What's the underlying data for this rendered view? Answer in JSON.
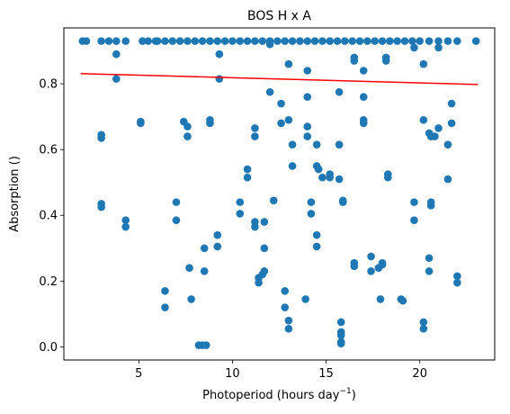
{
  "chart_data": {
    "type": "scatter",
    "title": "BOS H x A",
    "xlabel": "Photoperiod (hours day",
    "xlabel_sup": "−1",
    "xlabel_end": ")",
    "ylabel": "Absorption ()",
    "xlim": [
      1.0,
      24.0
    ],
    "ylim": [
      -0.04,
      0.97
    ],
    "xticks": [
      5,
      10,
      15,
      20
    ],
    "yticks": [
      0.0,
      0.2,
      0.4,
      0.6,
      0.8
    ],
    "xtick_labels": [
      "5",
      "10",
      "15",
      "20"
    ],
    "ytick_labels": [
      "0.0",
      "0.2",
      "0.4",
      "0.6",
      "0.8"
    ],
    "grid": false,
    "series": [
      {
        "marker_color": "#1f77b4",
        "points": [
          [
            2.0,
            0.93
          ],
          [
            2.2,
            0.93
          ],
          [
            3.0,
            0.93
          ],
          [
            3.4,
            0.93
          ],
          [
            3.8,
            0.93
          ],
          [
            4.3,
            0.93
          ],
          [
            5.2,
            0.93
          ],
          [
            5.5,
            0.93
          ],
          [
            5.9,
            0.93
          ],
          [
            6.0,
            0.93
          ],
          [
            6.4,
            0.93
          ],
          [
            6.8,
            0.93
          ],
          [
            7.2,
            0.93
          ],
          [
            7.6,
            0.93
          ],
          [
            8.0,
            0.93
          ],
          [
            8.4,
            0.93
          ],
          [
            8.8,
            0.93
          ],
          [
            9.2,
            0.93
          ],
          [
            9.6,
            0.93
          ],
          [
            10.0,
            0.93
          ],
          [
            10.4,
            0.93
          ],
          [
            10.8,
            0.93
          ],
          [
            11.2,
            0.93
          ],
          [
            11.6,
            0.93
          ],
          [
            12.0,
            0.93
          ],
          [
            12.4,
            0.93
          ],
          [
            12.8,
            0.93
          ],
          [
            13.2,
            0.93
          ],
          [
            13.6,
            0.93
          ],
          [
            14.0,
            0.93
          ],
          [
            14.4,
            0.93
          ],
          [
            14.8,
            0.93
          ],
          [
            15.2,
            0.93
          ],
          [
            15.6,
            0.93
          ],
          [
            16.0,
            0.93
          ],
          [
            16.4,
            0.93
          ],
          [
            16.8,
            0.93
          ],
          [
            17.2,
            0.93
          ],
          [
            17.6,
            0.93
          ],
          [
            18.0,
            0.93
          ],
          [
            18.4,
            0.93
          ],
          [
            18.8,
            0.93
          ],
          [
            19.2,
            0.93
          ],
          [
            19.6,
            0.93
          ],
          [
            20.0,
            0.93
          ],
          [
            20.5,
            0.93
          ],
          [
            21.0,
            0.93
          ],
          [
            21.5,
            0.93
          ],
          [
            22.0,
            0.93
          ],
          [
            23.0,
            0.93
          ],
          [
            3.8,
            0.89
          ],
          [
            9.3,
            0.89
          ],
          [
            12.0,
            0.92
          ],
          [
            19.7,
            0.91
          ],
          [
            21.0,
            0.91
          ],
          [
            16.5,
            0.88
          ],
          [
            16.5,
            0.87
          ],
          [
            18.2,
            0.88
          ],
          [
            18.2,
            0.87
          ],
          [
            13.0,
            0.86
          ],
          [
            20.2,
            0.86
          ],
          [
            14.0,
            0.84
          ],
          [
            17.0,
            0.84
          ],
          [
            3.8,
            0.815
          ],
          [
            9.3,
            0.815
          ],
          [
            12.0,
            0.775
          ],
          [
            15.7,
            0.775
          ],
          [
            14.0,
            0.76
          ],
          [
            17.0,
            0.76
          ],
          [
            12.6,
            0.74
          ],
          [
            21.7,
            0.74
          ],
          [
            12.6,
            0.68
          ],
          [
            13.0,
            0.69
          ],
          [
            14.0,
            0.67
          ],
          [
            14.0,
            0.64
          ],
          [
            11.2,
            0.665
          ],
          [
            11.2,
            0.64
          ],
          [
            7.4,
            0.685
          ],
          [
            7.6,
            0.67
          ],
          [
            7.6,
            0.64
          ],
          [
            8.8,
            0.69
          ],
          [
            8.8,
            0.68
          ],
          [
            5.1,
            0.685
          ],
          [
            5.1,
            0.68
          ],
          [
            3.0,
            0.645
          ],
          [
            3.0,
            0.635
          ],
          [
            17.0,
            0.69
          ],
          [
            17.0,
            0.68
          ],
          [
            20.2,
            0.69
          ],
          [
            20.5,
            0.65
          ],
          [
            20.6,
            0.64
          ],
          [
            20.8,
            0.64
          ],
          [
            21.0,
            0.665
          ],
          [
            21.7,
            0.68
          ],
          [
            21.5,
            0.615
          ],
          [
            13.2,
            0.615
          ],
          [
            14.5,
            0.615
          ],
          [
            15.7,
            0.615
          ],
          [
            13.2,
            0.55
          ],
          [
            14.5,
            0.55
          ],
          [
            14.6,
            0.54
          ],
          [
            14.8,
            0.515
          ],
          [
            15.2,
            0.525
          ],
          [
            15.2,
            0.515
          ],
          [
            15.7,
            0.51
          ],
          [
            18.3,
            0.525
          ],
          [
            18.3,
            0.515
          ],
          [
            21.5,
            0.51
          ],
          [
            10.8,
            0.54
          ],
          [
            10.8,
            0.515
          ],
          [
            10.4,
            0.44
          ],
          [
            10.4,
            0.405
          ],
          [
            11.2,
            0.38
          ],
          [
            11.2,
            0.365
          ],
          [
            12.2,
            0.445
          ],
          [
            14.2,
            0.44
          ],
          [
            14.2,
            0.405
          ],
          [
            15.9,
            0.445
          ],
          [
            15.9,
            0.44
          ],
          [
            20.6,
            0.44
          ],
          [
            20.6,
            0.43
          ],
          [
            19.7,
            0.44
          ],
          [
            19.7,
            0.385
          ],
          [
            7.0,
            0.44
          ],
          [
            7.0,
            0.385
          ],
          [
            3.0,
            0.435
          ],
          [
            3.0,
            0.425
          ],
          [
            4.3,
            0.385
          ],
          [
            4.3,
            0.365
          ],
          [
            9.2,
            0.34
          ],
          [
            9.2,
            0.305
          ],
          [
            11.7,
            0.38
          ],
          [
            11.7,
            0.3
          ],
          [
            14.5,
            0.34
          ],
          [
            14.5,
            0.305
          ],
          [
            8.5,
            0.3
          ],
          [
            7.7,
            0.24
          ],
          [
            8.5,
            0.23
          ],
          [
            11.4,
            0.21
          ],
          [
            11.4,
            0.195
          ],
          [
            11.7,
            0.23
          ],
          [
            11.6,
            0.22
          ],
          [
            16.5,
            0.255
          ],
          [
            16.5,
            0.245
          ],
          [
            17.4,
            0.275
          ],
          [
            17.4,
            0.23
          ],
          [
            17.8,
            0.24
          ],
          [
            18.0,
            0.25
          ],
          [
            18.0,
            0.255
          ],
          [
            20.5,
            0.27
          ],
          [
            20.5,
            0.23
          ],
          [
            22.0,
            0.215
          ],
          [
            22.0,
            0.195
          ],
          [
            6.4,
            0.17
          ],
          [
            6.4,
            0.12
          ],
          [
            7.8,
            0.145
          ],
          [
            12.8,
            0.17
          ],
          [
            12.8,
            0.12
          ],
          [
            13.9,
            0.145
          ],
          [
            17.9,
            0.145
          ],
          [
            19.0,
            0.145
          ],
          [
            19.1,
            0.14
          ],
          [
            13.0,
            0.08
          ],
          [
            13.0,
            0.055
          ],
          [
            15.8,
            0.075
          ],
          [
            15.8,
            0.045
          ],
          [
            15.8,
            0.035
          ],
          [
            15.8,
            0.015
          ],
          [
            15.8,
            0.01
          ],
          [
            20.2,
            0.075
          ],
          [
            20.2,
            0.055
          ],
          [
            8.2,
            0.005
          ],
          [
            8.4,
            0.005
          ],
          [
            8.6,
            0.005
          ]
        ]
      },
      {
        "type": "line",
        "line_color": "#ff0000",
        "x": [
          1.9,
          23.1
        ],
        "y": [
          0.831,
          0.798
        ]
      }
    ]
  }
}
